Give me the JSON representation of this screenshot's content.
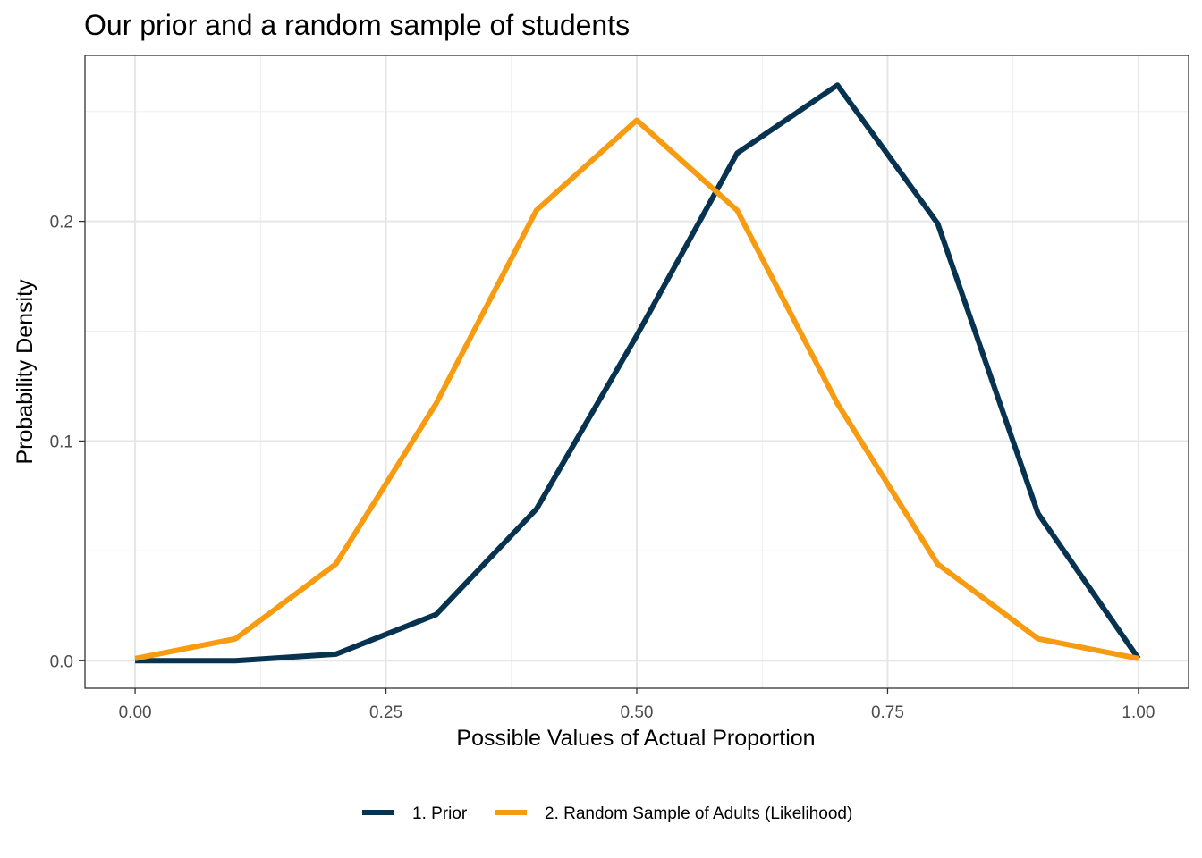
{
  "chart_data": {
    "type": "line",
    "title": "Our prior and a random sample of students",
    "xlabel": "Possible Values of Actual Proportion",
    "ylabel": "Probability Density",
    "xlim": [
      -0.05,
      1.05
    ],
    "ylim": [
      -0.0125,
      0.2755
    ],
    "x_ticks": [
      0,
      0.25,
      0.5,
      0.75,
      1
    ],
    "x_tick_labels": [
      "0.00",
      "0.25",
      "0.50",
      "0.75",
      "1.00"
    ],
    "y_ticks": [
      0,
      0.1,
      0.2
    ],
    "y_tick_labels": [
      "0.0",
      "0.1",
      "0.2"
    ],
    "grid": true,
    "legend_position": "bottom",
    "x": [
      0,
      0.1,
      0.2,
      0.3,
      0.4,
      0.5,
      0.6,
      0.7,
      0.8,
      0.9,
      1.0
    ],
    "series": [
      {
        "name": "1. Prior",
        "color": "#073350",
        "values": [
          0.0,
          0.0,
          0.003,
          0.021,
          0.069,
          0.148,
          0.231,
          0.262,
          0.199,
          0.067,
          0.001
        ]
      },
      {
        "name": "2. Random Sample of Adults (Likelihood)",
        "color": "#f79b11",
        "values": [
          0.001,
          0.01,
          0.044,
          0.117,
          0.205,
          0.246,
          0.205,
          0.117,
          0.044,
          0.01,
          0.001
        ]
      }
    ]
  }
}
